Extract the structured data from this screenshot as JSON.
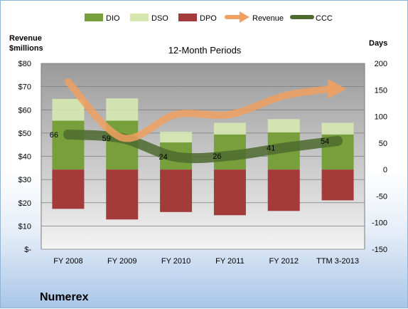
{
  "company": "Numerex",
  "chart_data": {
    "type": "bar",
    "title": "12-Month Periods",
    "left_axis_title": [
      "Revenue",
      "$millions"
    ],
    "right_axis_title": "Days",
    "categories": [
      "FY 2008",
      "FY 2009",
      "FY 2010",
      "FY 2011",
      "FY 2012",
      "TTM 3-2013"
    ],
    "left_axis": {
      "min": 0,
      "max": 80,
      "step": 10,
      "labels": [
        "$-",
        "$10",
        "$20",
        "$30",
        "$40",
        "$50",
        "$60",
        "$70",
        "$80"
      ]
    },
    "right_axis": {
      "min": -150,
      "max": 200,
      "step": 50,
      "labels": [
        "-150",
        "-100",
        "-50",
        "0",
        "50",
        "100",
        "150",
        "200"
      ]
    },
    "stack_base_days": 0,
    "series": [
      {
        "name": "DIO",
        "axis": "right",
        "values": [
          92,
          92,
          51,
          66,
          70,
          66
        ],
        "color": "#77a03c"
      },
      {
        "name": "DSO",
        "axis": "right",
        "values": [
          41,
          42,
          20,
          22,
          25,
          22
        ],
        "color": "#d6e8b0"
      },
      {
        "name": "DPO",
        "axis": "right",
        "values": [
          -74,
          -94,
          -80,
          -86,
          -78,
          -58
        ],
        "color": "#a33b3b"
      },
      {
        "name": "Revenue",
        "axis": "left",
        "values": [
          72,
          48,
          58,
          58,
          66,
          69
        ],
        "color": "#f0a060",
        "style": "arrow"
      },
      {
        "name": "CCC",
        "axis": "right",
        "values": [
          66,
          59,
          24,
          26,
          41,
          54
        ],
        "color": "#4e6a2e",
        "style": "thick-line"
      }
    ],
    "ccc_labels": [
      "66",
      "59",
      "24",
      "26",
      "41",
      "54"
    ],
    "legend_position": "top",
    "grid": true
  }
}
